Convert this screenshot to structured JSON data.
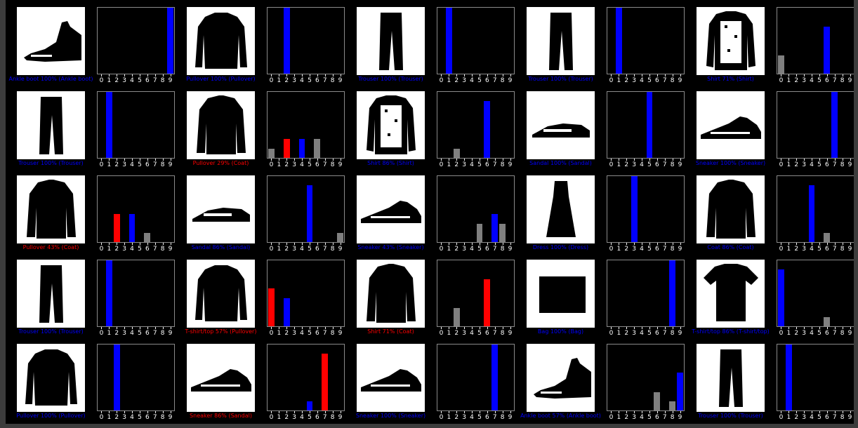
{
  "colors": {
    "correct": "#0000ff",
    "wrong": "#ff0000",
    "other": "#7f7f7f",
    "background": "#000000",
    "image_bg": "#ffffff"
  },
  "chart_data": {
    "type": "bar",
    "categories": [
      "0",
      "1",
      "2",
      "3",
      "4",
      "5",
      "6",
      "7",
      "8",
      "9"
    ],
    "ylim": [
      0,
      1
    ],
    "panels": [
      {
        "caption": "Ankle boot 100% (Ankle boot)",
        "status": "correct",
        "item": "boot",
        "values": [
          0,
          0,
          0,
          0,
          0,
          0,
          0,
          0,
          0,
          1
        ],
        "pred": 9,
        "true": 9
      },
      {
        "caption": "Pullover 100% (Pullover)",
        "status": "correct",
        "item": "pullover",
        "values": [
          0,
          0,
          1,
          0,
          0,
          0,
          0,
          0,
          0,
          0
        ],
        "pred": 2,
        "true": 2
      },
      {
        "caption": "Trouser 100% (Trouser)",
        "status": "correct",
        "item": "trouser",
        "values": [
          0,
          1,
          0,
          0,
          0,
          0,
          0,
          0,
          0,
          0
        ],
        "pred": 1,
        "true": 1
      },
      {
        "caption": "Trouser 100% (Trouser)",
        "status": "correct",
        "item": "trouser",
        "values": [
          0,
          1,
          0,
          0,
          0,
          0,
          0,
          0,
          0,
          0
        ],
        "pred": 1,
        "true": 1
      },
      {
        "caption": "Shirt 71% (Shirt)",
        "status": "correct",
        "item": "shirt",
        "values": [
          0.28,
          0,
          0,
          0,
          0,
          0,
          0.71,
          0,
          0,
          0
        ],
        "pred": 6,
        "true": 6
      },
      {
        "caption": "Trouser 100% (Trouser)",
        "status": "correct",
        "item": "trouser",
        "values": [
          0,
          1,
          0,
          0,
          0,
          0,
          0,
          0,
          0,
          0
        ],
        "pred": 1,
        "true": 1
      },
      {
        "caption": "Pullover 29% (Coat)",
        "status": "wrong",
        "item": "coat",
        "values": [
          0.14,
          0,
          0.29,
          0,
          0.29,
          0,
          0.29,
          0,
          0,
          0
        ],
        "pred": 2,
        "true": 4
      },
      {
        "caption": "Shirt 86% (Shirt)",
        "status": "correct",
        "item": "shirt",
        "values": [
          0,
          0,
          0.14,
          0,
          0,
          0,
          0.86,
          0,
          0,
          0
        ],
        "pred": 6,
        "true": 6
      },
      {
        "caption": "Sandal 100% (Sandal)",
        "status": "correct",
        "item": "sandal",
        "values": [
          0,
          0,
          0,
          0,
          0,
          1,
          0,
          0,
          0,
          0
        ],
        "pred": 5,
        "true": 5
      },
      {
        "caption": "Sneaker 100% (Sneaker)",
        "status": "correct",
        "item": "sneaker",
        "values": [
          0,
          0,
          0,
          0,
          0,
          0,
          0,
          1,
          0,
          0
        ],
        "pred": 7,
        "true": 7
      },
      {
        "caption": "Pullover 43% (Coat)",
        "status": "wrong",
        "item": "coat",
        "values": [
          0,
          0,
          0.43,
          0,
          0.43,
          0,
          0.14,
          0,
          0,
          0
        ],
        "pred": 2,
        "true": 4
      },
      {
        "caption": "Sandal 86% (Sandal)",
        "status": "correct",
        "item": "sandal",
        "values": [
          0,
          0,
          0,
          0,
          0,
          0.86,
          0,
          0,
          0,
          0.14
        ],
        "pred": 5,
        "true": 5
      },
      {
        "caption": "Sneaker 43% (Sneaker)",
        "status": "correct",
        "item": "sneaker",
        "values": [
          0,
          0,
          0,
          0,
          0,
          0.28,
          0,
          0.43,
          0.28,
          0
        ],
        "pred": 7,
        "true": 7
      },
      {
        "caption": "Dress 100% (Dress)",
        "status": "correct",
        "item": "dress",
        "values": [
          0,
          0,
          0,
          1,
          0,
          0,
          0,
          0,
          0,
          0
        ],
        "pred": 3,
        "true": 3
      },
      {
        "caption": "Coat 86% (Coat)",
        "status": "correct",
        "item": "coat",
        "values": [
          0,
          0,
          0,
          0,
          0.86,
          0,
          0.14,
          0,
          0,
          0
        ],
        "pred": 4,
        "true": 4
      },
      {
        "caption": "Trouser 100% (Trouser)",
        "status": "correct",
        "item": "trouser",
        "values": [
          0,
          1,
          0,
          0,
          0,
          0,
          0,
          0,
          0,
          0
        ],
        "pred": 1,
        "true": 1
      },
      {
        "caption": "T-shirt/top 57% (Pullover)",
        "status": "wrong",
        "item": "pullover",
        "values": [
          0.57,
          0,
          0.43,
          0,
          0,
          0,
          0,
          0,
          0,
          0
        ],
        "pred": 0,
        "true": 2
      },
      {
        "caption": "Shirt 71% (Coat)",
        "status": "wrong",
        "item": "coat",
        "values": [
          0,
          0,
          0.28,
          0,
          0,
          0,
          0.71,
          0,
          0,
          0
        ],
        "pred": 6,
        "true": 4
      },
      {
        "caption": "Bag 100% (Bag)",
        "status": "correct",
        "item": "bag",
        "values": [
          0,
          0,
          0,
          0,
          0,
          0,
          0,
          0,
          1,
          0
        ],
        "pred": 8,
        "true": 8
      },
      {
        "caption": "T-shirt/top 86% (T-shirt/top)",
        "status": "correct",
        "item": "tshirt",
        "values": [
          0.86,
          0,
          0,
          0,
          0,
          0,
          0.14,
          0,
          0,
          0
        ],
        "pred": 0,
        "true": 0
      },
      {
        "caption": "Pullover 100% (Pullover)",
        "status": "correct",
        "item": "pullover",
        "values": [
          0,
          0,
          1,
          0,
          0,
          0,
          0,
          0,
          0,
          0
        ],
        "pred": 2,
        "true": 2
      },
      {
        "caption": "Sneaker 86% (Sandal)",
        "status": "wrong",
        "item": "sneaker",
        "values": [
          0,
          0,
          0,
          0,
          0,
          0.14,
          0,
          0.86,
          0,
          0
        ],
        "pred": 7,
        "true": 5
      },
      {
        "caption": "Sneaker 100% (Sneaker)",
        "status": "correct",
        "item": "sneaker",
        "values": [
          0,
          0,
          0,
          0,
          0,
          0,
          0,
          1,
          0,
          0
        ],
        "pred": 7,
        "true": 7
      },
      {
        "caption": "Ankle boot 57% (Ankle boot)",
        "status": "correct",
        "item": "boot",
        "values": [
          0,
          0,
          0,
          0,
          0,
          0,
          0.28,
          0,
          0.14,
          0.57
        ],
        "pred": 9,
        "true": 9
      },
      {
        "caption": "Trouser 100% (Trouser)",
        "status": "correct",
        "item": "trouser",
        "values": [
          0,
          1,
          0,
          0,
          0,
          0,
          0,
          0,
          0,
          0
        ],
        "pred": 1,
        "true": 1
      }
    ]
  }
}
